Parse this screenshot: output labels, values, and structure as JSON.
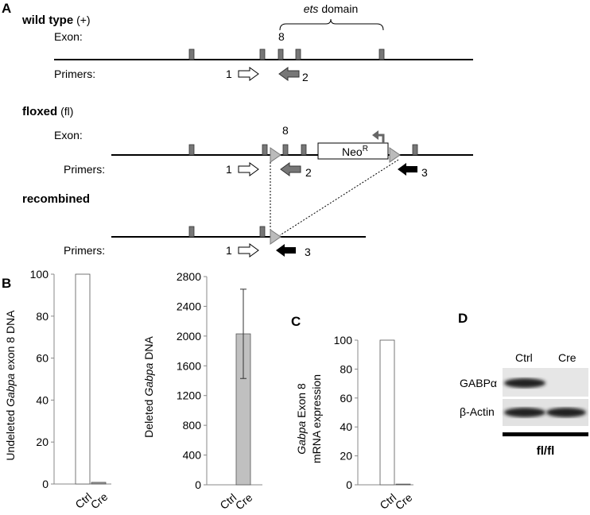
{
  "panel_labels": [
    "A",
    "B",
    "C",
    "D"
  ],
  "diagram": {
    "ets_domain": [
      "ets",
      " domain"
    ],
    "wild_type": {
      "title": "wild type",
      "suffix": " (+)",
      "exon_label": "Exon:",
      "exon_number": "8",
      "primers_label": "Primers:",
      "primers": [
        "1",
        "2"
      ]
    },
    "floxed": {
      "title": "floxed",
      "suffix": " (fl)",
      "exon_label": "Exon:",
      "exon_number": "8",
      "cassette": [
        "Neo",
        "R"
      ],
      "primers_label": "Primers:",
      "primers": [
        "1",
        "2",
        "3"
      ]
    },
    "recombined": {
      "title": "recombined",
      "primers_label": "Primers:",
      "primers": [
        "1",
        "3"
      ]
    }
  },
  "chart_data": [
    {
      "type": "bar",
      "ylabel": [
        "Undeleted ",
        "Gabpa",
        " exon 8 DNA"
      ],
      "categories": [
        "Ctrl",
        "Cre"
      ],
      "values": [
        100,
        0.8
      ],
      "colors": [
        "#ffffff",
        "#9a9a9a"
      ],
      "ylim": [
        0,
        100
      ],
      "yticks": [
        0,
        20,
        40,
        60,
        80,
        100
      ]
    },
    {
      "type": "bar",
      "ylabel": [
        "Deleted ",
        "Gabpa",
        " DNA"
      ],
      "categories": [
        "Ctrl",
        "Cre"
      ],
      "values": [
        0,
        2030
      ],
      "errors": [
        null,
        600
      ],
      "colors": [
        "#ffffff",
        "#c0c0c0"
      ],
      "ylim": [
        0,
        2800
      ],
      "yticks": [
        0,
        400,
        800,
        1200,
        1600,
        2000,
        2400,
        2800
      ]
    },
    {
      "type": "bar",
      "ylabel": [
        [
          "Gabpa",
          " Exon 8"
        ],
        [
          "mRNA expression"
        ]
      ],
      "categories": [
        "Ctrl",
        "Cre"
      ],
      "values": [
        100,
        0.5
      ],
      "colors": [
        "#ffffff",
        "#9a9a9a"
      ],
      "ylim": [
        0,
        100
      ],
      "yticks": [
        0,
        20,
        40,
        60,
        80,
        100
      ]
    }
  ],
  "blot": {
    "lanes": [
      "Ctrl",
      "Cre"
    ],
    "rows": [
      "GABPα",
      "β-Actin"
    ],
    "genotype": "fl/fl"
  }
}
